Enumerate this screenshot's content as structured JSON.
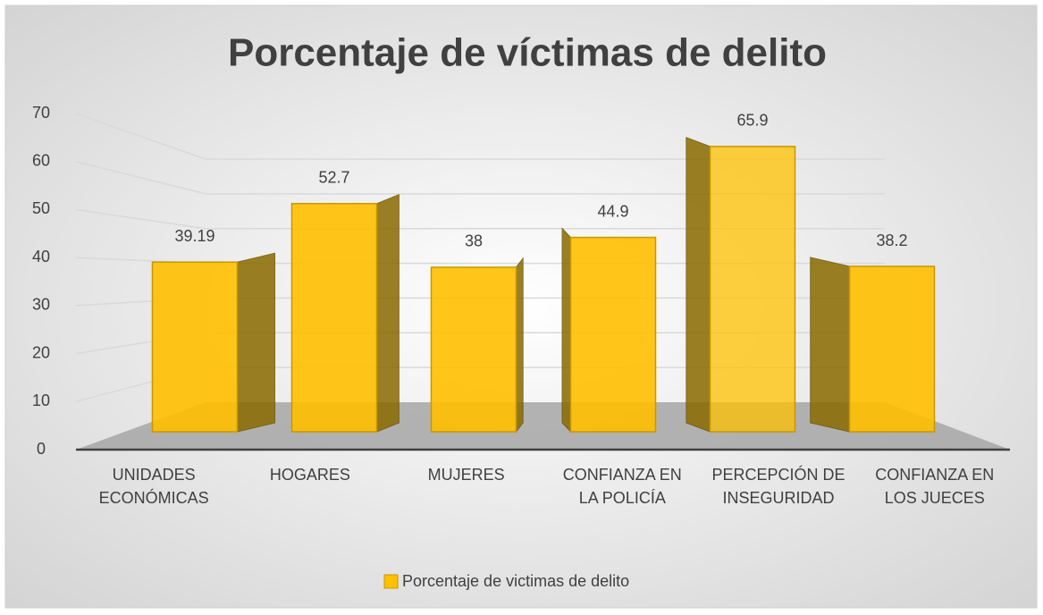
{
  "chart_data": {
    "type": "bar3d",
    "title": "Porcentaje de víctimas de delito",
    "categories": [
      "UNIDADES ECONÓMICAS",
      "HOGARES",
      "MUJERES",
      "CONFIANZA EN LA POLICÍA",
      "PERCEPCIÓN DE INSEGURIDAD",
      "CONFIANZA EN LOS JUECES"
    ],
    "series": [
      {
        "name": "Porcentaje de victimas de delito",
        "color": "#FFC000",
        "values": [
          39.19,
          52.7,
          38,
          44.9,
          65.9,
          38.2
        ]
      }
    ],
    "ylim": [
      0,
      70
    ],
    "yticks": [
      0,
      10,
      20,
      30,
      40,
      50,
      60,
      70
    ],
    "grid": true,
    "legend": "bottom"
  }
}
